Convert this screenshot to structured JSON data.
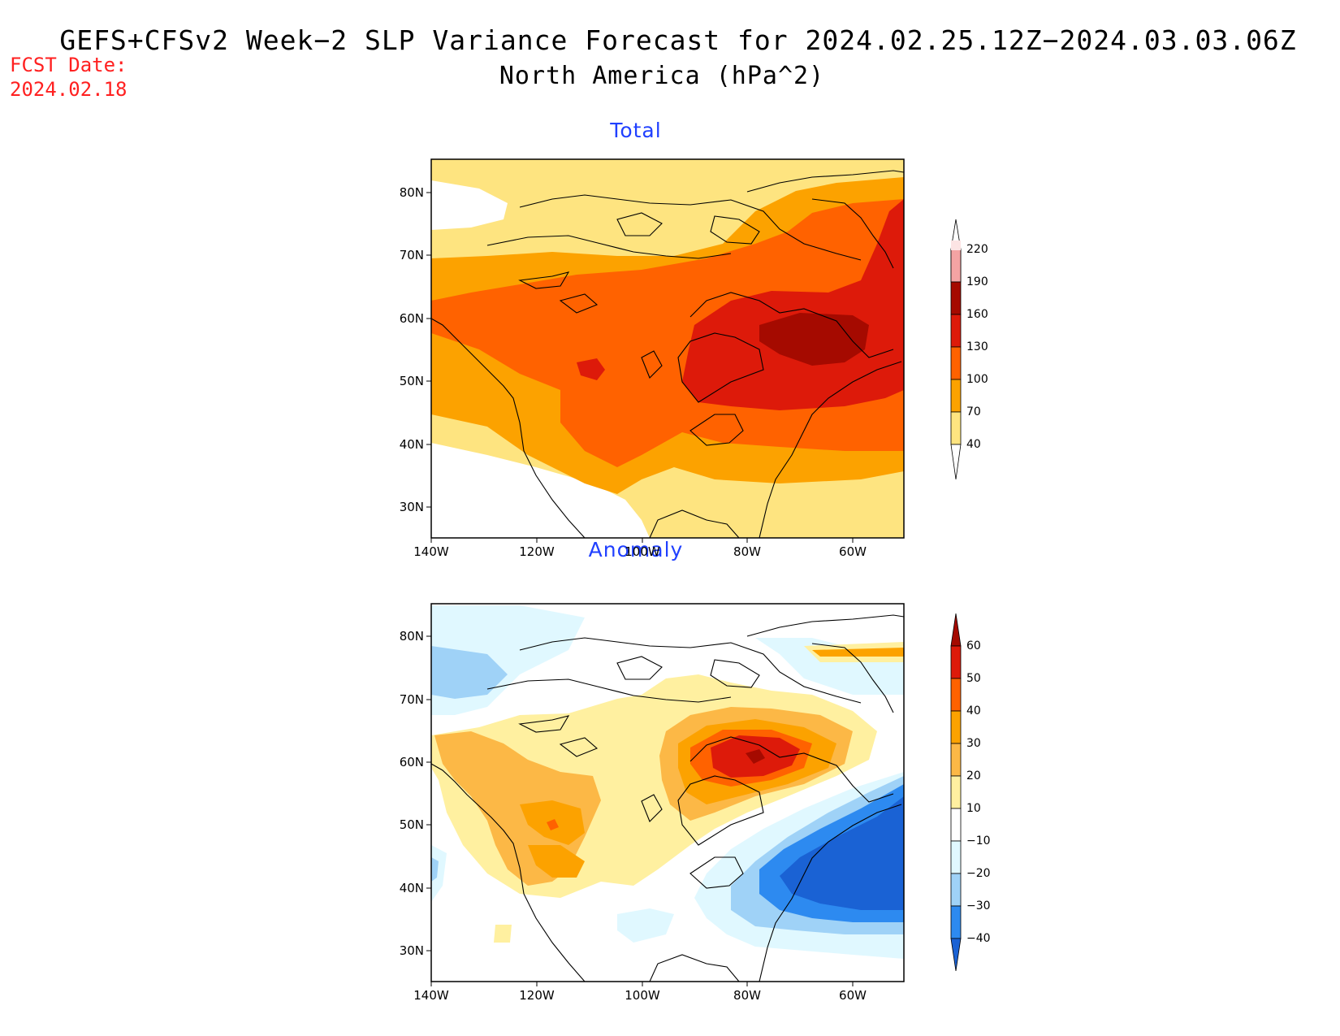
{
  "title": {
    "line1": "GEFS+CFSv2 Week−2 SLP Variance Forecast for 2024.02.25.12Z−2024.03.03.06Z",
    "line2": "North America (hPa^2)"
  },
  "fcst": {
    "label": "FCST Date:",
    "date": "2024.02.18"
  },
  "axes": {
    "lat_labels": [
      "80N",
      "70N",
      "60N",
      "50N",
      "40N",
      "30N"
    ],
    "lon_labels": [
      "140W",
      "120W",
      "100W",
      "80W",
      "60W"
    ]
  },
  "panels": [
    {
      "title": "Total",
      "colorbar": {
        "levels": [
          "220",
          "190",
          "160",
          "130",
          "100",
          "70",
          "40"
        ],
        "colors": [
          "#fce4e4",
          "#f4a3a3",
          "#a50a00",
          "#dd1a0a",
          "#ff6200",
          "#fca200",
          "#fee480"
        ]
      }
    },
    {
      "title": "Anomaly",
      "colorbar": {
        "levels": [
          "60",
          "50",
          "40",
          "30",
          "20",
          "10",
          "−10",
          "−20",
          "−30",
          "−40"
        ],
        "colors": [
          "#a50a00",
          "#dd1a0a",
          "#ff6200",
          "#fca200",
          "#fcb846",
          "#fff0a0",
          "#ffffff",
          "#e0f8ff",
          "#9fd2f7",
          "#2d8af0",
          "#1a62d4"
        ]
      }
    }
  ],
  "palette": {
    "title_color": "#2040ff",
    "fcst_color": "#ff2020"
  }
}
